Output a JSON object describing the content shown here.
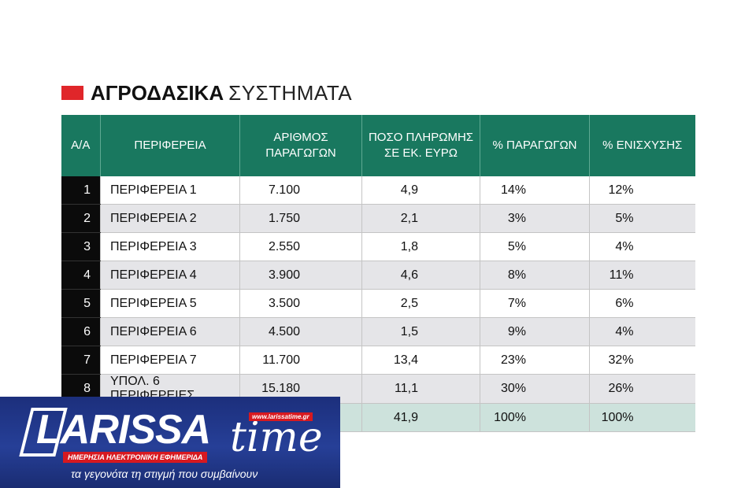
{
  "title": {
    "bold": "ΑΓΡΟΔΑΣΙΚΑ",
    "light": "ΣΥΣΤΗΜΑΤΑ"
  },
  "table": {
    "headers": [
      "Α/Α",
      "ΠΕΡΙΦΕΡΕΙΑ",
      "ΑΡΙΘΜΟΣ ΠΑΡΑΓΩΓΩΝ",
      "ΠΟΣΟ ΠΛΗΡΩΜΗΣ ΣΕ ΕΚ. ΕΥΡΩ",
      "% ΠΑΡΑΓΩΓΩΝ",
      "% ΕΝΙΣΧΥΣΗΣ"
    ],
    "rows": [
      {
        "n": "1",
        "region": "ΠΕΡΙΦΕΡΕΙΑ 1",
        "producers": "7.100",
        "amount": "4,9",
        "pct_producers": "14%",
        "pct_support": "12%"
      },
      {
        "n": "2",
        "region": "ΠΕΡΙΦΕΡΕΙΑ 2",
        "producers": "1.750",
        "amount": "2,1",
        "pct_producers": "3%",
        "pct_support": "5%"
      },
      {
        "n": "3",
        "region": "ΠΕΡΙΦΕΡΕΙΑ 3",
        "producers": "2.550",
        "amount": "1,8",
        "pct_producers": "5%",
        "pct_support": "4%"
      },
      {
        "n": "4",
        "region": "ΠΕΡΙΦΕΡΕΙΑ 4",
        "producers": "3.900",
        "amount": "4,6",
        "pct_producers": "8%",
        "pct_support": "11%"
      },
      {
        "n": "5",
        "region": "ΠΕΡΙΦΕΡΕΙΑ 5",
        "producers": "3.500",
        "amount": "2,5",
        "pct_producers": "7%",
        "pct_support": "6%"
      },
      {
        "n": "6",
        "region": "ΠΕΡΙΦΕΡΕΙΑ 6",
        "producers": "4.500",
        "amount": "1,5",
        "pct_producers": "9%",
        "pct_support": "4%"
      },
      {
        "n": "7",
        "region": "ΠΕΡΙΦΕΡΕΙΑ 7",
        "producers": "11.700",
        "amount": "13,4",
        "pct_producers": "23%",
        "pct_support": "32%"
      },
      {
        "n": "8",
        "region": "ΥΠΟΛ. 6 ΠΕΡΙΦΕΡΕΙΕΣ",
        "producers": "15.180",
        "amount": "11,1",
        "pct_producers": "30%",
        "pct_support": "26%"
      }
    ],
    "total": {
      "amount": "41,9",
      "pct_producers": "100%",
      "pct_support": "100%"
    }
  },
  "logo": {
    "word": "LARISSA",
    "word2": "time",
    "url": "www.larissatime.gr",
    "tagline": "ΗΜΕΡΗΣΙΑ ΗΛΕΚΤΡΟΝΙΚΗ ΕΦΗΜΕΡΙΔΑ",
    "slogan": "τα γεγονότα τη στιγμή που συμβαίνουν"
  },
  "colors": {
    "header": "#19785f",
    "accent": "#e0262a",
    "index_bg": "#0b0b0b",
    "total_row": "#cde2dc",
    "logo_bg": "#263f97"
  }
}
